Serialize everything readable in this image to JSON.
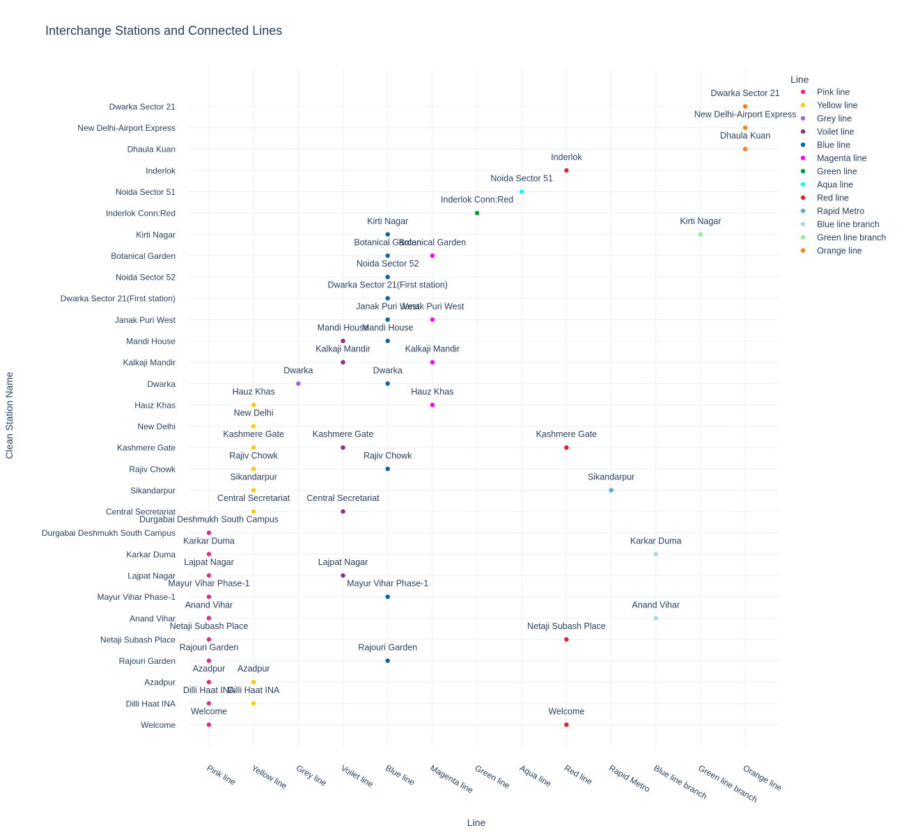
{
  "chart_data": {
    "type": "scatter",
    "title": "Interchange Stations and Connected Lines",
    "xlabel": "Line",
    "ylabel": "Clean Station Name",
    "legend_title": "Line",
    "legend_placement": "right",
    "grid": true,
    "x_categories": [
      "Pink line",
      "Yellow line",
      "Grey line",
      "Voilet line",
      "Blue line",
      "Magenta line",
      "Green line",
      "Aqua line",
      "Red line",
      "Rapid Metro",
      "Blue line branch",
      "Green line branch",
      "Orange line"
    ],
    "y_categories": [
      "Welcome",
      "Dilli Haat INA",
      "Azadpur",
      "Rajouri Garden",
      "Netaji Subash Place",
      "Anand Vihar",
      "Mayur Vihar Phase-1",
      "Lajpat Nagar",
      "Karkar Duma",
      "Durgabai Deshmukh South Campus",
      "Central Secretariat",
      "Sikandarpur",
      "Rajiv Chowk",
      "Kashmere Gate",
      "New Delhi",
      "Hauz Khas",
      "Dwarka",
      "Kalkaji Mandir",
      "Mandi House",
      "Janak Puri West",
      "Dwarka Sector 21(First station)",
      "Noida Sector 52",
      "Botanical Garden",
      "Kirti Nagar",
      "Inderlok Conn:Red",
      "Noida Sector 51",
      "Inderlok",
      "Dhaula Kuan",
      "New Delhi-Airport Express",
      "Dwarka Sector 21"
    ],
    "series": [
      {
        "name": "Pink line",
        "color": "#e6298b",
        "points": [
          "Durgabai Deshmukh South Campus",
          "Karkar Duma",
          "Lajpat Nagar",
          "Mayur Vihar Phase-1",
          "Anand Vihar",
          "Netaji Subash Place",
          "Rajouri Garden",
          "Azadpur",
          "Dilli Haat INA",
          "Welcome"
        ]
      },
      {
        "name": "Yellow line",
        "color": "#ffcc00",
        "points": [
          "Hauz Khas",
          "New Delhi",
          "Kashmere Gate",
          "Rajiv Chowk",
          "Sikandarpur",
          "Central Secretariat",
          "Azadpur",
          "Dilli Haat INA"
        ]
      },
      {
        "name": "Grey line",
        "color": "#a45ee5",
        "points": [
          "Dwarka"
        ]
      },
      {
        "name": "Voilet line",
        "color": "#8e2c8e",
        "points": [
          "Mandi House",
          "Kalkaji Mandir",
          "Kashmere Gate",
          "Central Secretariat",
          "Lajpat Nagar"
        ]
      },
      {
        "name": "Blue line",
        "color": "#0066b3",
        "points": [
          "Kirti Nagar",
          "Botanical Garden",
          "Noida Sector 52",
          "Dwarka Sector 21(First station)",
          "Janak Puri West",
          "Mandi House",
          "Dwarka",
          "Rajiv Chowk",
          "Mayur Vihar Phase-1",
          "Rajouri Garden"
        ]
      },
      {
        "name": "Magenta line",
        "color": "#ff00ff",
        "points": [
          "Botanical Garden",
          "Janak Puri West",
          "Kalkaji Mandir",
          "Hauz Khas"
        ]
      },
      {
        "name": "Green line",
        "color": "#009b3a",
        "points": [
          "Inderlok Conn:Red"
        ]
      },
      {
        "name": "Aqua line",
        "color": "#00ffff",
        "points": [
          "Noida Sector 51"
        ]
      },
      {
        "name": "Red line",
        "color": "#e5202a",
        "points": [
          "Inderlok",
          "Kashmere Gate",
          "Netaji Subash Place",
          "Welcome"
        ]
      },
      {
        "name": "Rapid Metro",
        "color": "#5aa9e0",
        "points": [
          "Sikandarpur"
        ]
      },
      {
        "name": "Blue line branch",
        "color": "#a6d9ec",
        "points": [
          "Karkar Duma",
          "Anand Vihar"
        ]
      },
      {
        "name": "Green line branch",
        "color": "#90ee90",
        "points": [
          "Kirti Nagar"
        ]
      },
      {
        "name": "Orange line",
        "color": "#ff7f0e",
        "points": [
          "Dwarka Sector 21",
          "New Delhi-Airport Express",
          "Dhaula Kuan"
        ]
      }
    ]
  }
}
